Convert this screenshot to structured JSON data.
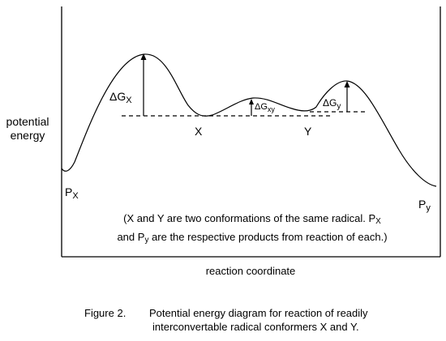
{
  "axis": {
    "ylabel_line1": "potential",
    "ylabel_line2": "energy",
    "xlabel": "reaction coordinate"
  },
  "labels": {
    "dG_x_base": "ΔG",
    "dG_x_sub": "X",
    "dG_xy_base": "ΔG",
    "dG_xy_sub": "xy",
    "dG_y_base": "ΔG",
    "dG_y_sub": "y",
    "X": "X",
    "Y": "Y",
    "Px_base": "P",
    "Px_sub": "X",
    "Py_base": "P",
    "Py_sub": "y"
  },
  "note": {
    "line1a": "(X and Y are two conformations of the same radical. P",
    "line1sub": "X",
    "line2a": "and P",
    "line2sub": "y",
    "line2b": " are the respective products from reaction of each.)"
  },
  "caption": {
    "number": "Figure 2.",
    "line1": "Potential energy diagram for reaction of readily",
    "line2": "interconvertable radical conformers X and Y."
  }
}
